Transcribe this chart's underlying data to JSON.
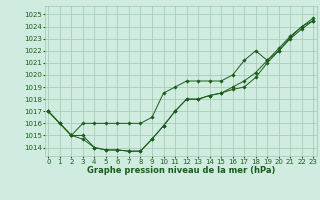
{
  "title": "Graphe pression niveau de la mer (hPa)",
  "background_color": "#d0ece0",
  "grid_color": "#a0c8b0",
  "line_color": "#1a5c1a",
  "x_ticks": [
    0,
    1,
    2,
    3,
    4,
    5,
    6,
    7,
    8,
    9,
    10,
    11,
    12,
    13,
    14,
    15,
    16,
    17,
    18,
    19,
    20,
    21,
    22,
    23
  ],
  "y_ticks": [
    1014,
    1015,
    1016,
    1017,
    1018,
    1019,
    1020,
    1021,
    1022,
    1023,
    1024,
    1025
  ],
  "ylim": [
    1013.3,
    1025.7
  ],
  "xlim": [
    -0.3,
    23.3
  ],
  "series1": [
    1017,
    1016,
    1015,
    1014.7,
    1014.0,
    1013.8,
    1013.8,
    1013.7,
    1013.7,
    1014.7,
    1015.8,
    1017.0,
    1018.0,
    1018.0,
    1018.3,
    1018.5,
    1018.8,
    1019.0,
    1019.8,
    1021.0,
    1022.0,
    1023.0,
    1023.8,
    1024.5
  ],
  "series2": [
    1017,
    1016,
    1015,
    1015.0,
    1014.0,
    1013.8,
    1013.8,
    1013.7,
    1013.7,
    1014.7,
    1015.8,
    1017.0,
    1018.0,
    1018.0,
    1018.3,
    1018.5,
    1019.0,
    1019.5,
    1020.2,
    1021.2,
    1022.2,
    1023.2,
    1024.0,
    1024.7
  ],
  "series3": [
    1017,
    1016,
    1015,
    1016.0,
    1016.0,
    1016.0,
    1016.0,
    1016.0,
    1016.0,
    1016.5,
    1018.5,
    1019.0,
    1019.5,
    1019.5,
    1019.5,
    1019.5,
    1020.0,
    1021.2,
    1022.0,
    1021.2,
    1022.0,
    1023.1,
    1024.0,
    1024.5
  ],
  "tick_fontsize": 5.0,
  "label_fontsize": 6.0
}
